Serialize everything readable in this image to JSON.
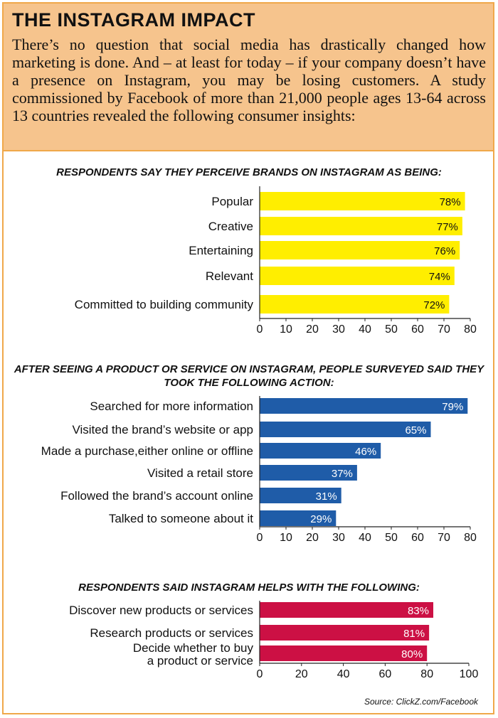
{
  "header": {
    "title": "THE INSTAGRAM IMPACT",
    "intro": "There’s no question that social media has drastically changed how marketing is done. And – at least for today – if your company doesn’t have a presence on Instagram, you may be losing customers. A study commissioned by Facebook of more than 21,000 people ages 13-64 across 13 countries revealed the following consumer insights:"
  },
  "chart_data": [
    {
      "type": "bar",
      "orientation": "horizontal",
      "title": "RESPONDENTS SAY THEY PERCEIVE BRANDS ON INSTAGRAM AS BEING:",
      "categories": [
        "Popular",
        "Creative",
        "Entertaining",
        "Relevant",
        "Committed to building community"
      ],
      "values": [
        78,
        77,
        76,
        74,
        72
      ],
      "value_labels": [
        "78%",
        "77%",
        "76%",
        "74%",
        "72%"
      ],
      "xlim": [
        0,
        80
      ],
      "ticks": [
        "0",
        "10",
        "20",
        "30",
        "40",
        "50",
        "60",
        "70",
        "80"
      ],
      "color": "#ffee00",
      "label_color": "#111111"
    },
    {
      "type": "bar",
      "orientation": "horizontal",
      "title": "AFTER SEEING A PRODUCT OR SERVICE ON INSTAGRAM, PEOPLE SURVEYED SAID THEY TOOK THE FOLLOWING ACTION:",
      "categories": [
        "Searched for more information",
        "Visited the brand’s website or app",
        "Made a purchase,either online or offline",
        "Visited a retail store",
        "Followed the brand’s account online",
        "Talked to someone about it"
      ],
      "values": [
        79,
        65,
        46,
        37,
        31,
        29
      ],
      "value_labels": [
        "79%",
        "65%",
        "46%",
        "37%",
        "31%",
        "29%"
      ],
      "xlim": [
        0,
        80
      ],
      "ticks": [
        "0",
        "10",
        "20",
        "30",
        "40",
        "50",
        "60",
        "70",
        "80"
      ],
      "color": "#1f5ca8",
      "label_color": "#ffffff"
    },
    {
      "type": "bar",
      "orientation": "horizontal",
      "title": "RESPONDENTS SAID INSTAGRAM HELPS WITH THE FOLLOWING:",
      "categories": [
        "Discover new products or services",
        "Research products or services",
        "Decide whether to buy a product or service"
      ],
      "values": [
        83,
        81,
        80
      ],
      "value_labels": [
        "83%",
        "81%",
        "80%"
      ],
      "xlim": [
        0,
        100
      ],
      "ticks": [
        "0",
        "20",
        "40",
        "60",
        "80",
        "100"
      ],
      "color": "#cc1044",
      "label_color": "#ffffff"
    }
  ],
  "source": "Source: ClickZ.com/Facebook"
}
